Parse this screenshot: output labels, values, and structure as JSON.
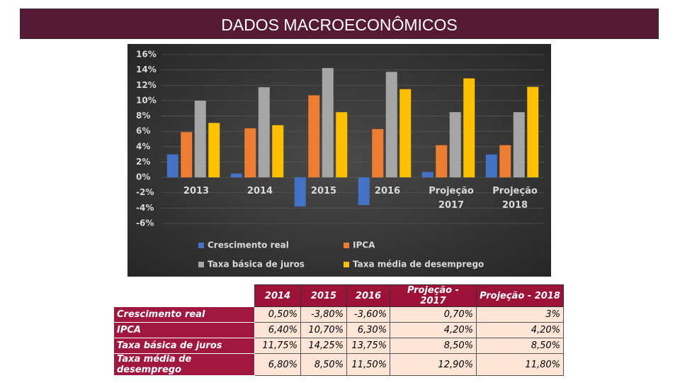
{
  "header": {
    "title": "DADOS MACROECONÔMICOS"
  },
  "chart_data": {
    "type": "bar",
    "categories": [
      "2013",
      "2014",
      "2015",
      "2016",
      "Projeção 2017",
      "Projeção 2018"
    ],
    "series": [
      {
        "name": "Crescimento real",
        "color": "#4472c4",
        "values": [
          3.0,
          0.5,
          -3.8,
          -3.6,
          0.7,
          3.0
        ]
      },
      {
        "name": "IPCA",
        "color": "#ed7d31",
        "values": [
          5.9,
          6.4,
          10.7,
          6.3,
          4.2,
          4.2
        ]
      },
      {
        "name": "Taxa básica de juros",
        "color": "#a5a5a5",
        "values": [
          10.0,
          11.75,
          14.25,
          13.75,
          8.5,
          8.5
        ]
      },
      {
        "name": "Taxa média de desemprego",
        "color": "#ffc000",
        "values": [
          7.1,
          6.8,
          8.5,
          11.5,
          12.9,
          11.8
        ]
      }
    ],
    "ylim": [
      -6,
      16
    ],
    "yticks": [
      {
        "value": -6,
        "label": "-6%"
      },
      {
        "value": -4,
        "label": "-4%"
      },
      {
        "value": -2,
        "label": "-2%"
      },
      {
        "value": 0,
        "label": "0%"
      },
      {
        "value": 2,
        "label": "2%"
      },
      {
        "value": 4,
        "label": "4%"
      },
      {
        "value": 6,
        "label": "6%"
      },
      {
        "value": 8,
        "label": "8%"
      },
      {
        "value": 10,
        "label": "10%"
      },
      {
        "value": 12,
        "label": "12%"
      },
      {
        "value": 14,
        "label": "14%"
      },
      {
        "value": 16,
        "label": "16%"
      }
    ],
    "grid": true,
    "legend": "bottom"
  },
  "table": {
    "header": [
      "2014",
      "2015",
      "2016",
      "Projeção - 2017",
      "Projeção - 2018"
    ],
    "rows": [
      {
        "label": "Crescimento real",
        "cells": [
          "0,50%",
          "-3,80%",
          "-3,60%",
          "0,70%",
          "3%"
        ]
      },
      {
        "label": "IPCA",
        "cells": [
          "6,40%",
          "10,70%",
          "6,30%",
          "4,20%",
          "4,20%"
        ]
      },
      {
        "label": "Taxa básica de juros",
        "cells": [
          "11,75%",
          "14,25%",
          "13,75%",
          "8,50%",
          "8,50%"
        ]
      },
      {
        "label": "Taxa média de desemprego",
        "cells": [
          "6,80%",
          "8,50%",
          "11,50%",
          "12,90%",
          "11,80%"
        ]
      }
    ]
  }
}
